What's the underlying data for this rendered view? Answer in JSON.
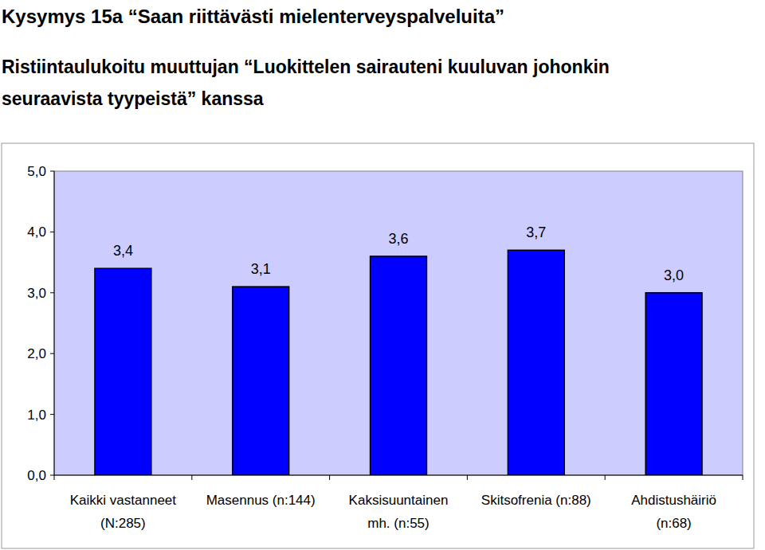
{
  "chart_data": {
    "type": "bar",
    "title": "Kysymys 15a “Saan riittävästi mielenterveyspalveluita”",
    "subtitle": [
      "Ristiintaulukoitu muuttujan “Luokittelen sairauteni kuuluvan johonkin",
      "seuraavista tyypeistä” kanssa"
    ],
    "categories": [
      "Kaikki vastanneet\n(N:285)",
      "Masennus (n:144)",
      "Kaksisuuntainen\nmh. (n:55)",
      "Skitsofrenia (n:88)",
      "Ahdistushäiriö\n(n:68)"
    ],
    "values": [
      3.4,
      3.1,
      3.6,
      3.7,
      3.0
    ],
    "value_labels": [
      "3,4",
      "3,1",
      "3,6",
      "3,7",
      "3,0"
    ],
    "color": "#0000ff",
    "ylim": [
      0,
      5
    ],
    "yticks": [
      {
        "value": 0,
        "label": "0,0"
      },
      {
        "value": 1,
        "label": "1,0"
      },
      {
        "value": 2,
        "label": "2,0"
      },
      {
        "value": 3,
        "label": "3,0"
      },
      {
        "value": 4,
        "label": "4,0"
      },
      {
        "value": 5,
        "label": "5,0"
      }
    ],
    "grid": false,
    "data_labels": true
  }
}
